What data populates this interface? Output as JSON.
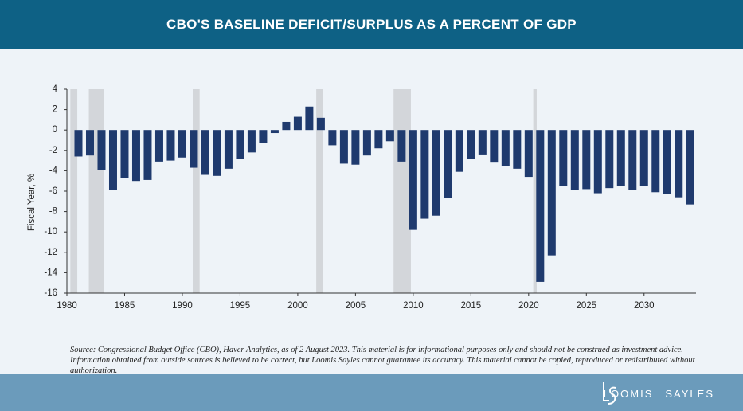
{
  "chart_data": {
    "type": "bar",
    "title": "CBO'S BASELINE DEFICIT/SURPLUS AS A PERCENT OF GDP",
    "y_label": "Fiscal Year, %",
    "x": [
      1981,
      1982,
      1983,
      1984,
      1985,
      1986,
      1987,
      1988,
      1989,
      1990,
      1991,
      1992,
      1993,
      1994,
      1995,
      1996,
      1997,
      1998,
      1999,
      2000,
      2001,
      2002,
      2003,
      2004,
      2005,
      2006,
      2007,
      2008,
      2009,
      2010,
      2011,
      2012,
      2013,
      2014,
      2015,
      2016,
      2017,
      2018,
      2019,
      2020,
      2021,
      2022,
      2023,
      2024,
      2025,
      2026,
      2027,
      2028,
      2029,
      2030,
      2031,
      2032,
      2033,
      2034
    ],
    "values": [
      -2.6,
      -2.5,
      -3.9,
      -5.9,
      -4.7,
      -5.0,
      -4.9,
      -3.1,
      -3.0,
      -2.7,
      -3.7,
      -4.4,
      -4.5,
      -3.8,
      -2.8,
      -2.2,
      -1.3,
      -0.3,
      0.8,
      1.3,
      2.3,
      1.2,
      -1.5,
      -3.3,
      -3.4,
      -2.5,
      -1.8,
      -1.1,
      -3.1,
      -9.8,
      -8.7,
      -8.4,
      -6.7,
      -4.1,
      -2.8,
      -2.4,
      -3.2,
      -3.5,
      -3.8,
      -4.6,
      -14.9,
      -12.3,
      -5.5,
      -5.9,
      -5.8,
      -6.2,
      -5.7,
      -5.5,
      -5.9,
      -5.5,
      -6.1,
      -6.3,
      -6.6,
      -7.3
    ],
    "color": "#1f3a6e",
    "recessions": [
      [
        1980.3,
        1980.9
      ],
      [
        1981.9,
        1983.2
      ],
      [
        1990.9,
        1991.5
      ],
      [
        2001.6,
        2002.2
      ],
      [
        2008.3,
        2009.8
      ],
      [
        2020.4,
        2020.7
      ]
    ],
    "recession_color": "#d3d6da",
    "xlim": [
      1980,
      2034.5
    ],
    "xticks": [
      1980,
      1985,
      1990,
      1995,
      2000,
      2005,
      2010,
      2015,
      2020,
      2025,
      2030
    ],
    "ylim": [
      -16,
      4
    ],
    "yticks": [
      4,
      2,
      0,
      -2,
      -4,
      -6,
      -8,
      -10,
      -12,
      -14,
      -16
    ]
  },
  "footer": {
    "source": "Source: Congressional Budget Office (CBO), Haver Analytics, as of 2 August 2023. This material is for informational purposes only and should not be construed as investment advice. Information obtained from outside sources is believed to be correct, but Loomis Sayles cannot guarantee its accuracy. This material cannot be copied, reproduced or redistributed without authorization.",
    "brand": [
      "LOOMIS",
      "SAYLES"
    ]
  }
}
